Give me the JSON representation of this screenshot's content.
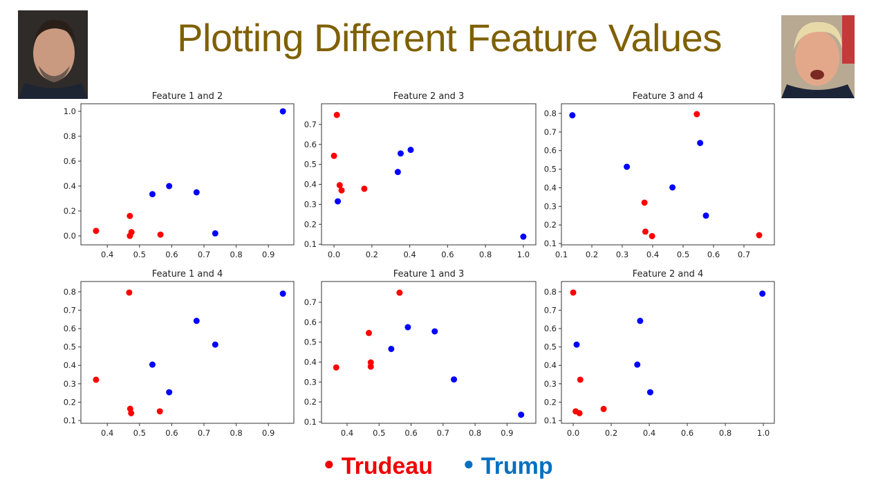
{
  "slide": {
    "title": "Plotting Different Feature Values",
    "left_photo": "portrait of Trudeau",
    "right_photo": "portrait of Trump"
  },
  "legend": {
    "items": [
      {
        "label": "Trudeau",
        "color": "#EE0000"
      },
      {
        "label": "Trump",
        "color": "#0070C0"
      }
    ]
  },
  "chart_data": [
    {
      "type": "scatter",
      "title": "Feature 1 and 2",
      "xlim": [
        0.318,
        0.979
      ],
      "ylim": [
        -0.072,
        1.061
      ],
      "xticks": [
        "0.4",
        "0.5",
        "0.6",
        "0.7",
        "0.8",
        "0.9"
      ],
      "yticks": [
        "0.0",
        "0.2",
        "0.4",
        "0.6",
        "0.8",
        "1.0"
      ],
      "series": [
        {
          "color": "#FF0000",
          "points": [
            [
              0.365,
              0.04
            ],
            [
              0.47,
              0.16
            ],
            [
              0.475,
              0.03
            ],
            [
              0.47,
              0.0
            ],
            [
              0.565,
              0.01
            ]
          ]
        },
        {
          "color": "#0000FF",
          "points": [
            [
              0.54,
              0.335
            ],
            [
              0.592,
              0.4
            ],
            [
              0.677,
              0.35
            ],
            [
              0.735,
              0.02
            ],
            [
              0.945,
              1.0
            ]
          ]
        }
      ]
    },
    {
      "type": "scatter",
      "title": "Feature 2 and 3",
      "xlim": [
        -0.066,
        1.066
      ],
      "ylim": [
        0.097,
        0.804
      ],
      "xticks": [
        "0.0",
        "0.2",
        "0.4",
        "0.6",
        "0.8",
        "1.0"
      ],
      "yticks": [
        "0.1",
        "0.2",
        "0.3",
        "0.4",
        "0.5",
        "0.6",
        "0.7"
      ],
      "series": [
        {
          "color": "#FF0000",
          "points": [
            [
              0.015,
              0.748
            ],
            [
              0.0,
              0.543
            ],
            [
              0.03,
              0.396
            ],
            [
              0.04,
              0.37
            ],
            [
              0.16,
              0.378
            ]
          ]
        },
        {
          "color": "#0000FF",
          "points": [
            [
              0.02,
              0.315
            ],
            [
              0.337,
              0.462
            ],
            [
              0.352,
              0.555
            ],
            [
              0.405,
              0.573
            ],
            [
              1.0,
              0.138
            ]
          ]
        }
      ]
    },
    {
      "type": "scatter",
      "title": "Feature 3 and 4",
      "xlim": [
        0.1,
        0.8
      ],
      "ylim": [
        0.093,
        0.852
      ],
      "xticks": [
        "0.1",
        "0.2",
        "0.3",
        "0.4",
        "0.5",
        "0.6",
        "0.7"
      ],
      "yticks": [
        "0.1",
        "0.2",
        "0.3",
        "0.4",
        "0.5",
        "0.6",
        "0.7",
        "0.8"
      ],
      "series": [
        {
          "color": "#FF0000",
          "points": [
            [
              0.545,
              0.796
            ],
            [
              0.373,
              0.32
            ],
            [
              0.376,
              0.164
            ],
            [
              0.398,
              0.14
            ],
            [
              0.75,
              0.145
            ]
          ]
        },
        {
          "color": "#0000FF",
          "points": [
            [
              0.136,
              0.79
            ],
            [
              0.315,
              0.513
            ],
            [
              0.465,
              0.402
            ],
            [
              0.556,
              0.641
            ],
            [
              0.575,
              0.25
            ]
          ]
        }
      ]
    },
    {
      "type": "scatter",
      "title": "Feature 1 and 4",
      "xlim": [
        0.318,
        0.979
      ],
      "ylim": [
        0.085,
        0.856
      ],
      "xticks": [
        "0.4",
        "0.5",
        "0.6",
        "0.7",
        "0.8",
        "0.9"
      ],
      "yticks": [
        "0.1",
        "0.2",
        "0.3",
        "0.4",
        "0.5",
        "0.6",
        "0.7",
        "0.8"
      ],
      "series": [
        {
          "color": "#FF0000",
          "points": [
            [
              0.468,
              0.796
            ],
            [
              0.365,
              0.322
            ],
            [
              0.471,
              0.164
            ],
            [
              0.474,
              0.14
            ],
            [
              0.563,
              0.15
            ]
          ]
        },
        {
          "color": "#0000FF",
          "points": [
            [
              0.54,
              0.404
            ],
            [
              0.592,
              0.254
            ],
            [
              0.677,
              0.642
            ],
            [
              0.735,
              0.513
            ],
            [
              0.945,
              0.79
            ]
          ]
        }
      ]
    },
    {
      "type": "scatter",
      "title": "Feature 1 and 3",
      "xlim": [
        0.32,
        0.99
      ],
      "ylim": [
        0.093,
        0.804
      ],
      "xticks": [
        "0.4",
        "0.5",
        "0.6",
        "0.7",
        "0.8",
        "0.9"
      ],
      "yticks": [
        "0.1",
        "0.2",
        "0.3",
        "0.4",
        "0.5",
        "0.6",
        "0.7"
      ],
      "series": [
        {
          "color": "#FF0000",
          "points": [
            [
              0.366,
              0.373
            ],
            [
              0.468,
              0.546
            ],
            [
              0.474,
              0.398
            ],
            [
              0.474,
              0.377
            ],
            [
              0.564,
              0.748
            ]
          ]
        },
        {
          "color": "#0000FF",
          "points": [
            [
              0.538,
              0.466
            ],
            [
              0.59,
              0.575
            ],
            [
              0.674,
              0.554
            ],
            [
              0.734,
              0.313
            ],
            [
              0.944,
              0.136
            ]
          ]
        }
      ]
    },
    {
      "type": "scatter",
      "title": "Feature 2 and 4",
      "xlim": [
        -0.062,
        1.058
      ],
      "ylim": [
        0.085,
        0.856
      ],
      "xticks": [
        "0.0",
        "0.2",
        "0.4",
        "0.6",
        "0.8",
        "1.0"
      ],
      "yticks": [
        "0.1",
        "0.2",
        "0.3",
        "0.4",
        "0.5",
        "0.6",
        "0.7",
        "0.8"
      ],
      "series": [
        {
          "color": "#FF0000",
          "points": [
            [
              0.0,
              0.796
            ],
            [
              0.037,
              0.322
            ],
            [
              0.013,
              0.15
            ],
            [
              0.033,
              0.14
            ],
            [
              0.16,
              0.163
            ]
          ]
        },
        {
          "color": "#0000FF",
          "points": [
            [
              0.018,
              0.513
            ],
            [
              0.337,
              0.404
            ],
            [
              0.352,
              0.642
            ],
            [
              0.405,
              0.254
            ],
            [
              0.995,
              0.79
            ]
          ]
        }
      ]
    }
  ]
}
